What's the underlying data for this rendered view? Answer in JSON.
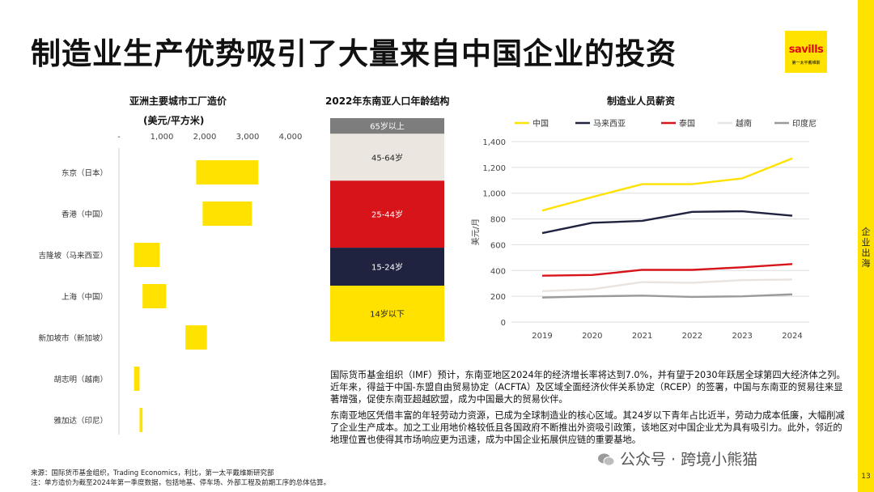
{
  "title": "制造业生产优势吸引了大量来自中国企业的投资",
  "logo": {
    "brand": "savills",
    "sub": "第一太平戴维斯"
  },
  "side_label": "企业出海",
  "page_number": "13",
  "colors": {
    "accent": "#FFE200",
    "china": "#FFE200",
    "malaysia": "#1f2340",
    "thailand": "#d7141a",
    "vietnam": "#e9e4df",
    "indonesia": "#9a9a9a"
  },
  "chart1": {
    "title": "亚洲主要城市工厂造价",
    "unit": "(美元/平方米)",
    "ticks": [
      "-",
      "1,000",
      "2,000",
      "3,000",
      "4,000"
    ],
    "rows": [
      {
        "label": "东京（日本）",
        "low": 1800,
        "high": 3250
      },
      {
        "label": "香港（中国）",
        "low": 1950,
        "high": 3100
      },
      {
        "label": "吉隆坡（马来西亚）",
        "low": 350,
        "high": 950
      },
      {
        "label": "上海（中国）",
        "low": 550,
        "high": 1100
      },
      {
        "label": "新加坡市（新加坡）",
        "low": 1550,
        "high": 2050
      },
      {
        "label": "胡志明（越南）",
        "low": 350,
        "high": 480
      },
      {
        "label": "雅加达（印尼）",
        "low": 480,
        "high": 550
      }
    ]
  },
  "chart2": {
    "title": "2022年东南亚人口年龄结构",
    "segments": [
      {
        "label": "65岁以上",
        "share": 7,
        "color": "#7d7d7d",
        "text_color": "#ffffff"
      },
      {
        "label": "45-64岁",
        "share": 21,
        "color": "#ebe6e0",
        "text_color": "#222222"
      },
      {
        "label": "25-44岁",
        "share": 30,
        "color": "#d7141a",
        "text_color": "#ffffff"
      },
      {
        "label": "15-24岁",
        "share": 17,
        "color": "#1f2340",
        "text_color": "#ffffff"
      },
      {
        "label": "14岁以下",
        "share": 25,
        "color": "#FFE200",
        "text_color": "#222222"
      }
    ]
  },
  "chart_data": {
    "type": "line",
    "title": "制造业人员薪资",
    "ylabel": "美元/月",
    "x": [
      "2019",
      "2020",
      "2021",
      "2022",
      "2023",
      "2024"
    ],
    "ylim": [
      0,
      1400
    ],
    "yticks": [
      "0",
      "200",
      "400",
      "600",
      "800",
      "1,000",
      "1,200",
      "1,400"
    ],
    "grid": true,
    "legend": "top",
    "series": [
      {
        "name": "中国",
        "color": "#FFE200",
        "values": [
          865,
          970,
          1070,
          1070,
          1115,
          1270
        ]
      },
      {
        "name": "马来西亚",
        "color": "#1f2340",
        "values": [
          690,
          770,
          785,
          855,
          860,
          825
        ]
      },
      {
        "name": "泰国",
        "color": "#d7141a",
        "values": [
          360,
          365,
          405,
          405,
          425,
          450
        ]
      },
      {
        "name": "越南",
        "color": "#e9e4df",
        "values": [
          240,
          255,
          310,
          305,
          325,
          330
        ]
      },
      {
        "name": "印度尼西亚",
        "color": "#9a9a9a",
        "values": [
          190,
          200,
          205,
          195,
          200,
          215
        ]
      }
    ]
  },
  "paragraphs": [
    "国际货币基金组织（IMF）预计，东南亚地区2024年的经济增长率将达到7.0%，并有望于2030年跃居全球第四大经济体之列。近年来，得益于中国-东盟自由贸易协定（ACFTA）及区域全面经济伙伴关系协定（RCEP）的签署，中国与东南亚的贸易往来显著增强，促使东南亚超越欧盟，成为中国最大的贸易伙伴。",
    "东南亚地区凭借丰富的年轻劳动力资源，已成为全球制造业的核心区域。其24岁以下青年占比近半，劳动力成本低廉，大幅削减了企业生产成本。加之工业用地价格较低且各国政府不断推出外资吸引政策，该地区对中国企业尤为具有吸引力。此外，邻近的地理位置也使得其市场响应更为迅速，成为中国企业拓展供应链的重要基地。"
  ],
  "sources": [
    "来源：国际货币基金组织，Trading Economics，利比，第一太平戴维斯研究部",
    "注：单方造价为截至2024年第一季度数据，包括地基、停车场、外部工程及前期工序的总体估算。"
  ],
  "wechat": "公众号 · 跨境小熊猫"
}
